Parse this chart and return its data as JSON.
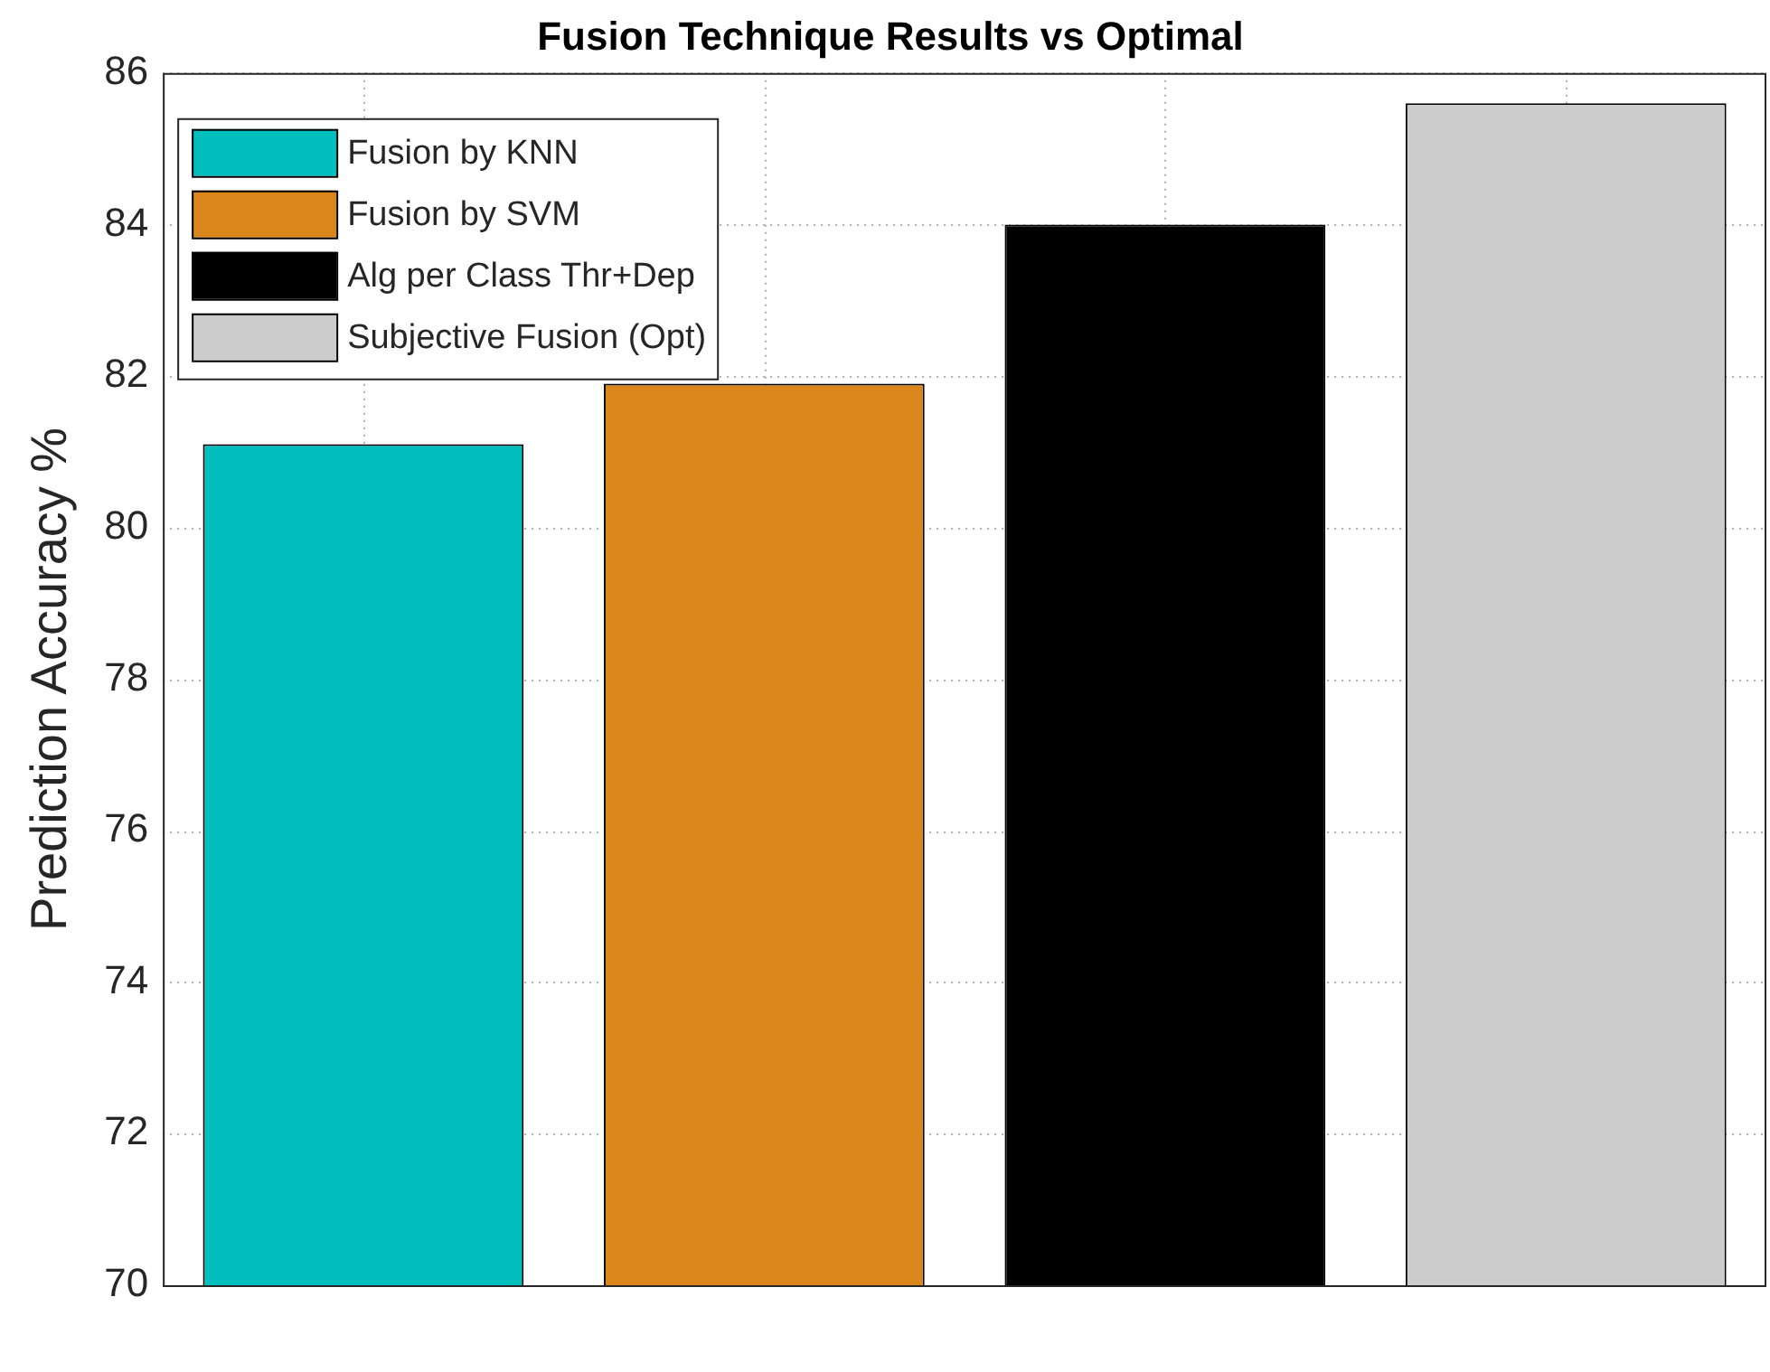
{
  "chart_data": {
    "type": "bar",
    "title": "Fusion Technique Results vs Optimal",
    "ylabel": "Prediction Accuracy %",
    "categories": [
      null,
      null,
      null,
      null
    ],
    "series": [
      {
        "name": "Fusion by KNN",
        "color": "#00bebe",
        "values": [
          81.1,
          null,
          null,
          null
        ]
      },
      {
        "name": "Fusion by SVM",
        "color": "#d9861a",
        "values": [
          null,
          81.9,
          null,
          null
        ]
      },
      {
        "name": "Alg per Class Thr+Dep",
        "color": "#000000",
        "values": [
          null,
          null,
          84.0,
          null
        ]
      },
      {
        "name": "Subjective Fusion (Opt)",
        "color": "#cccccc",
        "values": [
          null,
          null,
          null,
          85.6
        ]
      }
    ],
    "ylim": [
      70,
      86
    ],
    "yticks": [
      70,
      72,
      74,
      76,
      78,
      80,
      82,
      84,
      86
    ],
    "grid": true,
    "legend": "top left"
  }
}
